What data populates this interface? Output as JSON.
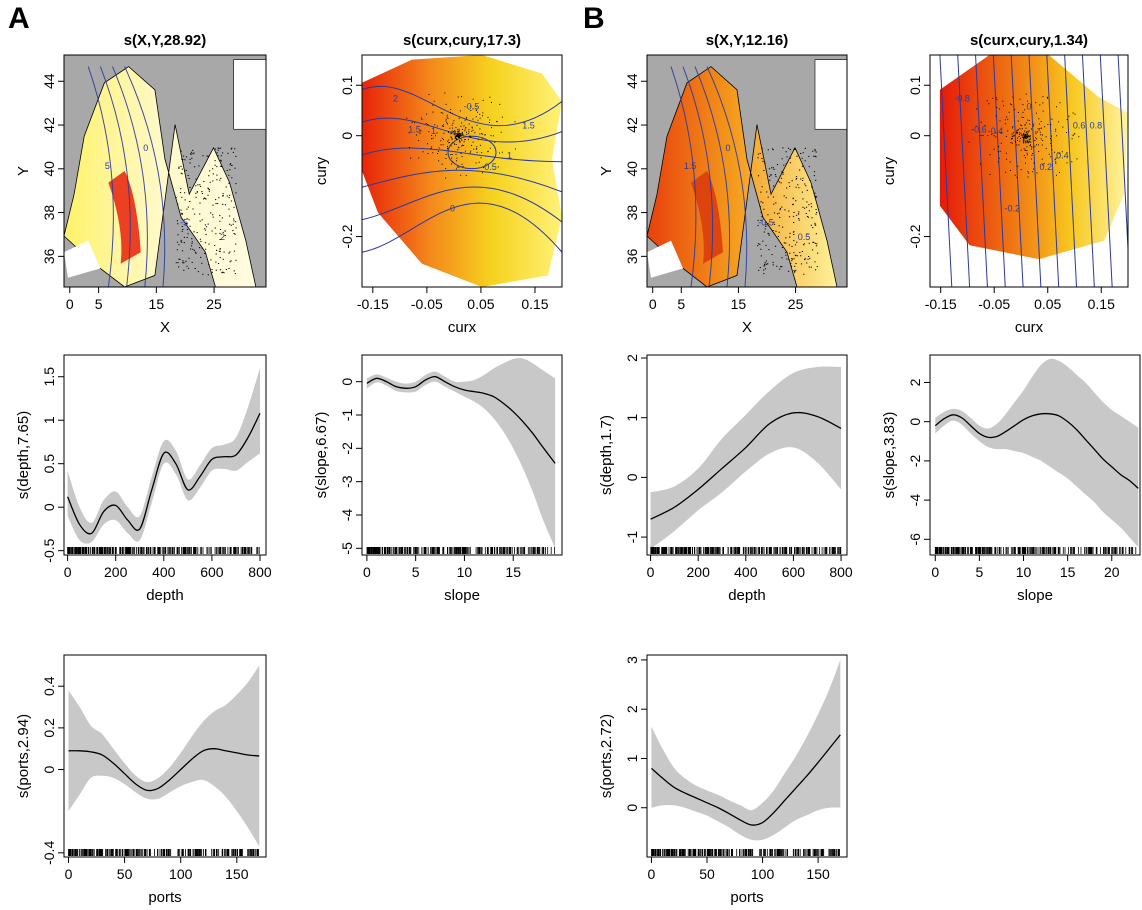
{
  "panel_labels": [
    "A",
    "B"
  ],
  "colors": {
    "band": "#c8c8c8",
    "line": "#000000",
    "land": "#a8a8a8",
    "contour": "#2a3aa0",
    "hot": "#e8200a",
    "warm": "#f4a020",
    "cool": "#fff7b0"
  },
  "chart_data": [
    {
      "id": "a-xy",
      "type": "heatmap",
      "title": "s(X,Y,28.92)",
      "xlabel": "X",
      "ylabel": "Y",
      "xticks": [
        0,
        5,
        15,
        25
      ],
      "yticks": [
        36,
        38,
        40,
        42,
        44
      ],
      "xlim": [
        -1,
        34
      ],
      "ylim": [
        34.6,
        45.2
      ],
      "contour_labels": [
        "5",
        "0",
        "-5",
        "2"
      ]
    },
    {
      "id": "a-cur",
      "type": "heatmap",
      "title": "s(curx,cury,17.3)",
      "xlabel": "curx",
      "ylabel": "cury",
      "xticks": [
        -0.15,
        -0.05,
        0.05,
        0.15
      ],
      "yticks": [
        0.1,
        0.0,
        -0.2
      ],
      "xlim": [
        -0.17,
        0.2
      ],
      "ylim": [
        -0.3,
        0.16
      ],
      "contour_labels": [
        "2",
        "1.5",
        "1",
        "0",
        "-0.5",
        "0.5",
        "1",
        "1.5"
      ]
    },
    {
      "id": "b-xy",
      "type": "heatmap",
      "title": "s(X,Y,12.16)",
      "xlabel": "X",
      "ylabel": "Y",
      "xticks": [
        0,
        5,
        15,
        25
      ],
      "yticks": [
        36,
        38,
        40,
        42,
        44
      ],
      "xlim": [
        -1,
        34
      ],
      "ylim": [
        34.6,
        45.2
      ],
      "contour_labels": [
        "1.5",
        "0",
        "-0.5",
        "0.5"
      ]
    },
    {
      "id": "b-cur",
      "type": "heatmap",
      "title": "s(curx,cury,1.34)",
      "xlabel": "curx",
      "ylabel": "cury",
      "xticks": [
        -0.15,
        -0.05,
        0.05,
        0.15
      ],
      "yticks": [
        0.1,
        0.0,
        -0.2
      ],
      "xlim": [
        -0.17,
        0.2
      ],
      "ylim": [
        -0.3,
        0.16
      ],
      "contour_labels": [
        "-0.8",
        "-0.6",
        "-0.4",
        "-0.2",
        "0",
        "0.2",
        "0.4",
        "0.6",
        "0.8"
      ]
    },
    {
      "id": "a-depth",
      "type": "line",
      "xlabel": "depth",
      "ylabel": "s(depth,7.65)",
      "xticks": [
        0,
        200,
        400,
        600,
        800
      ],
      "yticks": [
        -0.5,
        0.0,
        0.5,
        1.0,
        1.5
      ],
      "xlim": [
        -15,
        825
      ],
      "ylim": [
        -0.55,
        1.75
      ],
      "x": [
        0,
        50,
        100,
        150,
        200,
        250,
        300,
        350,
        400,
        450,
        500,
        550,
        600,
        650,
        700,
        750,
        800
      ],
      "y": [
        0.12,
        -0.2,
        -0.3,
        -0.05,
        0.02,
        -0.15,
        -0.25,
        0.2,
        0.62,
        0.5,
        0.2,
        0.35,
        0.55,
        0.58,
        0.6,
        0.8,
        1.08
      ],
      "lower": [
        -0.1,
        -0.38,
        -0.4,
        -0.2,
        -0.15,
        -0.3,
        -0.38,
        0.05,
        0.5,
        0.38,
        0.08,
        0.22,
        0.42,
        0.44,
        0.42,
        0.52,
        0.62
      ],
      "upper": [
        0.42,
        0.0,
        -0.18,
        0.08,
        0.18,
        0.0,
        -0.1,
        0.35,
        0.76,
        0.65,
        0.32,
        0.48,
        0.68,
        0.72,
        0.8,
        1.15,
        1.6
      ]
    },
    {
      "id": "a-slope",
      "type": "line",
      "xlabel": "slope",
      "ylabel": "s(slope,6.67)",
      "xticks": [
        0,
        5,
        10,
        15
      ],
      "yticks": [
        0,
        -1,
        -2,
        -3,
        -4,
        -5
      ],
      "xlim": [
        -0.5,
        20
      ],
      "ylim": [
        -5.2,
        0.8
      ],
      "x": [
        0,
        1,
        2,
        3,
        4,
        5,
        6,
        7,
        8,
        9,
        10,
        11,
        12,
        13,
        14,
        15,
        16,
        17,
        18,
        19.3
      ],
      "y": [
        -0.05,
        0.1,
        0.0,
        -0.15,
        -0.2,
        -0.15,
        0.05,
        0.15,
        0.0,
        -0.15,
        -0.25,
        -0.3,
        -0.35,
        -0.45,
        -0.65,
        -0.9,
        -1.2,
        -1.55,
        -1.95,
        -2.45
      ],
      "lower": [
        -0.2,
        -0.02,
        -0.12,
        -0.28,
        -0.32,
        -0.3,
        -0.1,
        0.0,
        -0.15,
        -0.3,
        -0.45,
        -0.6,
        -0.8,
        -1.1,
        -1.5,
        -2.0,
        -2.6,
        -3.3,
        -4.1,
        -5.0
      ],
      "upper": [
        0.1,
        0.22,
        0.12,
        0.0,
        -0.06,
        0.0,
        0.2,
        0.3,
        0.15,
        0.0,
        0.0,
        0.05,
        0.2,
        0.4,
        0.55,
        0.68,
        0.7,
        0.55,
        0.35,
        0.1
      ]
    },
    {
      "id": "b-depth",
      "type": "line",
      "xlabel": "depth",
      "ylabel": "s(depth,1.7)",
      "xticks": [
        0,
        200,
        400,
        600,
        800
      ],
      "yticks": [
        -1.0,
        0.0,
        1.0,
        2.0
      ],
      "xlim": [
        -15,
        825
      ],
      "ylim": [
        -1.3,
        2.05
      ],
      "x": [
        0,
        100,
        200,
        300,
        400,
        500,
        600,
        700,
        800
      ],
      "y": [
        -0.7,
        -0.5,
        -0.2,
        0.15,
        0.5,
        0.9,
        1.08,
        1.02,
        0.82
      ],
      "lower": [
        -1.2,
        -0.9,
        -0.55,
        -0.25,
        0.1,
        0.4,
        0.5,
        0.25,
        -0.2
      ],
      "upper": [
        -0.25,
        -0.15,
        0.15,
        0.65,
        1.05,
        1.45,
        1.75,
        1.85,
        1.85
      ]
    },
    {
      "id": "b-slope",
      "type": "line",
      "xlabel": "slope",
      "ylabel": "s(slope,3.83)",
      "xticks": [
        0,
        5,
        10,
        15,
        20
      ],
      "yticks": [
        2,
        0,
        -2,
        -4,
        -6
      ],
      "xlim": [
        -0.6,
        23.2
      ],
      "ylim": [
        -6.8,
        3.4
      ],
      "x": [
        0,
        1,
        2,
        3,
        4,
        5,
        6,
        7,
        8,
        9,
        10,
        11,
        12,
        13,
        14,
        15,
        16,
        17,
        18,
        19,
        20,
        21,
        22,
        23
      ],
      "y": [
        -0.2,
        0.15,
        0.35,
        0.2,
        -0.2,
        -0.6,
        -0.8,
        -0.75,
        -0.5,
        -0.2,
        0.1,
        0.3,
        0.4,
        0.4,
        0.3,
        0.0,
        -0.4,
        -0.9,
        -1.4,
        -1.9,
        -2.3,
        -2.7,
        -3.0,
        -3.4
      ],
      "lower": [
        -0.6,
        -0.2,
        0.05,
        -0.15,
        -0.6,
        -1.0,
        -1.3,
        -1.4,
        -1.4,
        -1.5,
        -1.6,
        -1.8,
        -2.0,
        -2.3,
        -2.6,
        -2.9,
        -3.3,
        -3.7,
        -4.1,
        -4.6,
        -5.0,
        -5.4,
        -5.9,
        -6.4
      ],
      "upper": [
        0.2,
        0.5,
        0.65,
        0.55,
        0.2,
        -0.2,
        -0.35,
        -0.1,
        0.4,
        1.0,
        1.6,
        2.3,
        2.9,
        3.2,
        3.1,
        2.8,
        2.4,
        2.0,
        1.5,
        1.0,
        0.6,
        0.3,
        0.0,
        -0.3
      ]
    },
    {
      "id": "a-ports",
      "type": "line",
      "xlabel": "ports",
      "ylabel": "s(ports,2.94)",
      "xticks": [
        0,
        50,
        100,
        150
      ],
      "yticks": [
        0.4,
        0.2,
        0.0,
        -0.4
      ],
      "xlim": [
        -4,
        176
      ],
      "ylim": [
        -0.42,
        0.55
      ],
      "x": [
        0,
        10,
        20,
        30,
        40,
        50,
        60,
        70,
        80,
        90,
        100,
        110,
        120,
        130,
        140,
        150,
        160,
        170
      ],
      "y": [
        0.09,
        0.09,
        0.085,
        0.07,
        0.03,
        -0.02,
        -0.07,
        -0.1,
        -0.09,
        -0.05,
        0.0,
        0.05,
        0.09,
        0.1,
        0.09,
        0.08,
        0.07,
        0.065
      ],
      "lower": [
        -0.2,
        -0.12,
        -0.04,
        -0.03,
        -0.04,
        -0.07,
        -0.11,
        -0.14,
        -0.14,
        -0.11,
        -0.08,
        -0.06,
        -0.05,
        -0.08,
        -0.13,
        -0.2,
        -0.28,
        -0.37
      ],
      "upper": [
        0.38,
        0.3,
        0.21,
        0.17,
        0.1,
        0.03,
        -0.03,
        -0.06,
        -0.04,
        0.01,
        0.08,
        0.16,
        0.23,
        0.28,
        0.31,
        0.36,
        0.42,
        0.5
      ]
    },
    {
      "id": "b-ports",
      "type": "line",
      "xlabel": "ports",
      "ylabel": "s(ports,2.72)",
      "xticks": [
        0,
        50,
        100,
        150
      ],
      "yticks": [
        0,
        1,
        2,
        3
      ],
      "xlim": [
        -4,
        176
      ],
      "ylim": [
        -1.0,
        3.1
      ],
      "x": [
        0,
        10,
        20,
        30,
        40,
        50,
        60,
        70,
        80,
        90,
        100,
        110,
        120,
        130,
        140,
        150,
        160,
        170
      ],
      "y": [
        0.8,
        0.6,
        0.42,
        0.3,
        0.2,
        0.1,
        0.0,
        -0.12,
        -0.25,
        -0.35,
        -0.3,
        -0.1,
        0.15,
        0.4,
        0.65,
        0.92,
        1.2,
        1.48
      ],
      "lower": [
        0.0,
        0.05,
        0.05,
        0.0,
        -0.08,
        -0.16,
        -0.28,
        -0.4,
        -0.55,
        -0.65,
        -0.65,
        -0.55,
        -0.4,
        -0.25,
        -0.15,
        -0.05,
        0.0,
        0.0
      ],
      "upper": [
        1.65,
        1.2,
        0.82,
        0.6,
        0.45,
        0.35,
        0.26,
        0.15,
        0.05,
        -0.05,
        0.1,
        0.35,
        0.7,
        1.05,
        1.45,
        1.9,
        2.4,
        3.0
      ]
    }
  ]
}
